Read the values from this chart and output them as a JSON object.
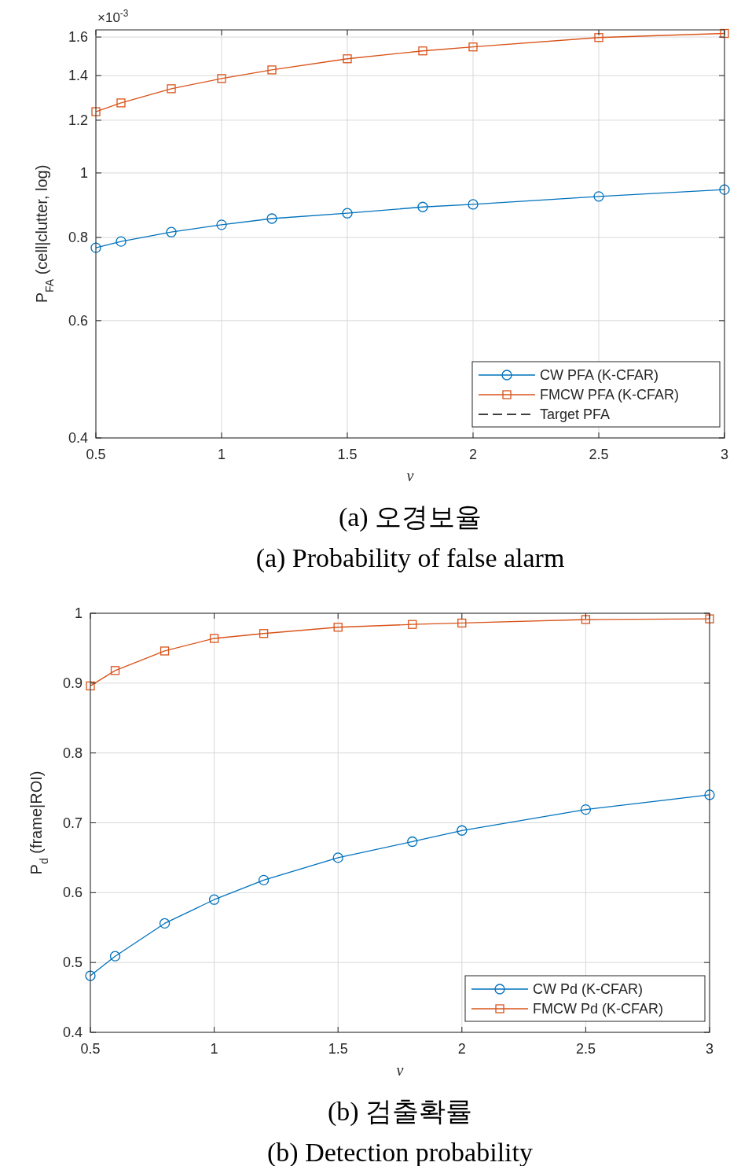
{
  "chart_data": [
    {
      "type": "line",
      "xlabel": "ν",
      "ylabel": "P$_{FA}$ (cell|clutter, log)",
      "x": [
        0.5,
        0.6,
        0.8,
        1,
        1.2,
        1.5,
        1.8,
        2,
        2.5,
        3
      ],
      "log": true,
      "xlim": [
        0.5,
        3
      ],
      "xticks": [
        0.5,
        1,
        1.5,
        2,
        2.5,
        3
      ],
      "ylim": [
        0.4,
        1.64
      ],
      "yticks": [
        0.4,
        0.6,
        0.8,
        1,
        1.2,
        1.4,
        1.6
      ],
      "grid": true,
      "legend": "bottom right",
      "series": [
        {
          "name": "CW PFA (K-CFAR)",
          "color": "#0072bd",
          "marker": "circle",
          "values": [
            0.772,
            0.789,
            0.815,
            0.836,
            0.854,
            0.87,
            0.889,
            0.897,
            0.922,
            0.944
          ]
        },
        {
          "name": "FMCW PFA (K-CFAR)",
          "color": "#d95319",
          "marker": "square",
          "values": [
            1.236,
            1.274,
            1.338,
            1.386,
            1.428,
            1.484,
            1.525,
            1.546,
            1.597,
            1.62
          ]
        },
        {
          "name": "Target PFA",
          "color": "#000000",
          "marker": "none",
          "line_style": "dashed",
          "values": [
            null,
            null,
            null,
            null,
            null,
            null,
            null,
            null,
            null,
            null
          ]
        }
      ],
      "annotations": [
        "×10$^{-3}$",
        "(a) 오경보율",
        "(a) Probability of false alarm"
      ]
    },
    {
      "type": "line",
      "xlabel": "ν",
      "ylabel": "P$_{d}$ (frame|ROI)",
      "x": [
        0.5,
        0.6,
        0.8,
        1,
        1.2,
        1.5,
        1.8,
        2,
        2.5,
        3
      ],
      "xlim": [
        0.5,
        3
      ],
      "xticks": [
        0.5,
        1,
        1.5,
        2,
        2.5,
        3
      ],
      "ylim": [
        0.4,
        1
      ],
      "yticks": [
        0.4,
        0.5,
        0.6,
        0.7,
        0.8,
        0.9,
        1
      ],
      "grid": true,
      "legend": "bottom right",
      "series": [
        {
          "name": "CW Pd (K-CFAR)",
          "color": "#0072bd",
          "marker": "circle",
          "values": [
            0.481,
            0.509,
            0.556,
            0.59,
            0.618,
            0.65,
            0.673,
            0.689,
            0.719,
            0.74
          ]
        },
        {
          "name": "FMCW Pd (K-CFAR)",
          "color": "#d95319",
          "marker": "square",
          "values": [
            0.896,
            0.918,
            0.946,
            0.964,
            0.971,
            0.98,
            0.984,
            0.986,
            0.991,
            0.992
          ]
        }
      ],
      "annotations": [
        "(b) 검출확률",
        "(b) Detection probability"
      ]
    }
  ]
}
